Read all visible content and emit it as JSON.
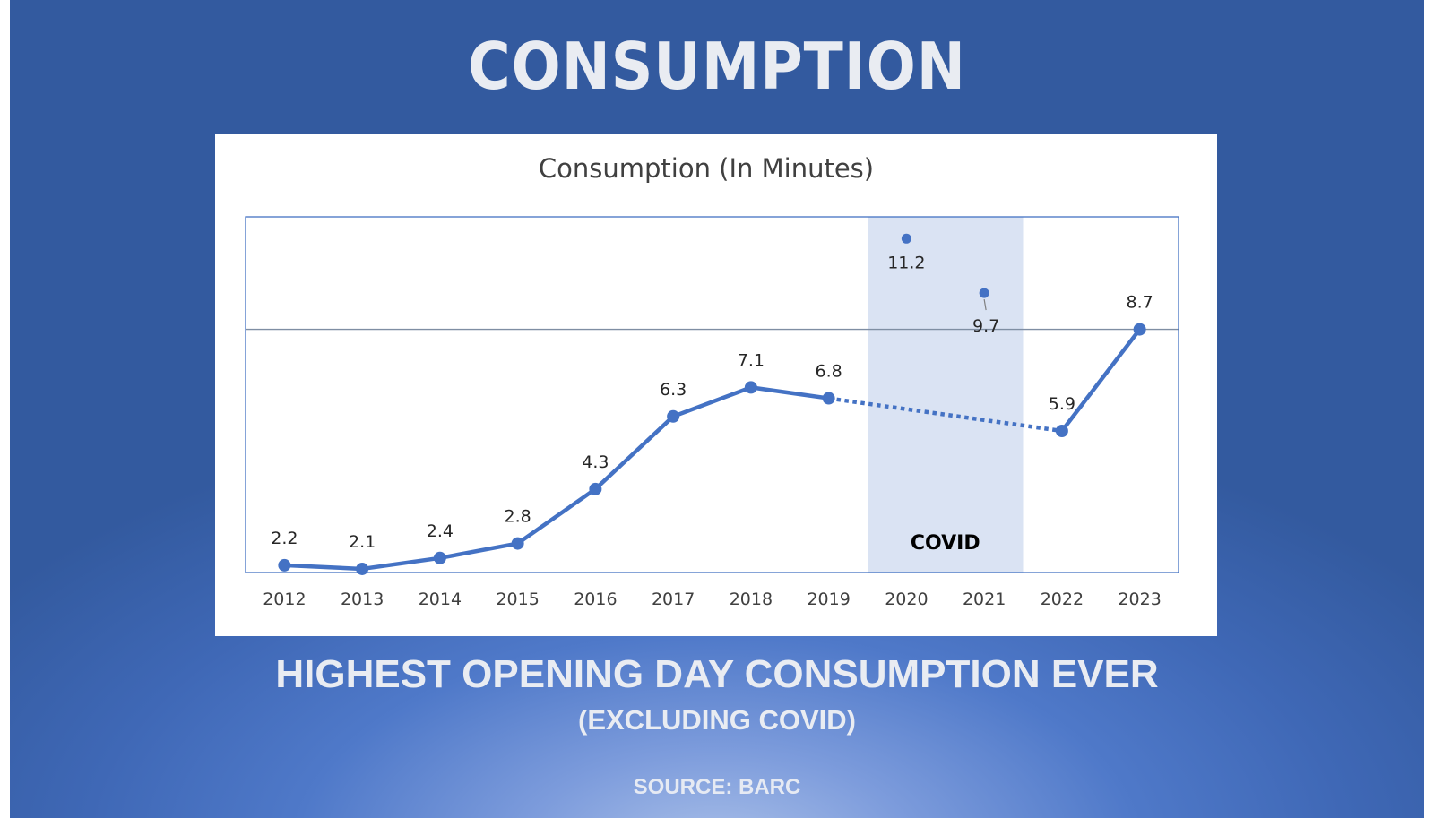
{
  "slide": {
    "title": "CONSUMPTION",
    "subtitle": "HIGHEST OPENING DAY CONSUMPTION EVER",
    "subnote": "(EXCLUDING COVID)",
    "source": "SOURCE: BARC"
  },
  "colors": {
    "series": "#4472c4",
    "band": "#dae3f3",
    "frame": "#4472c4",
    "reference_line": "#7f8ea3"
  },
  "chart_data": {
    "type": "line",
    "title": "Consumption (In Minutes)",
    "xlabel": "",
    "ylabel": "",
    "categories": [
      "2012",
      "2013",
      "2014",
      "2015",
      "2016",
      "2017",
      "2018",
      "2019",
      "2020",
      "2021",
      "2022",
      "2023"
    ],
    "series": [
      {
        "values": [
          2.2,
          2.1,
          2.4,
          2.8,
          4.3,
          6.3,
          7.1,
          6.8,
          11.2,
          9.7,
          5.9,
          8.7
        ]
      }
    ],
    "value_labels": [
      "2.2",
      "2.1",
      "2.4",
      "2.8",
      "4.3",
      "6.3",
      "7.1",
      "6.8",
      "11.2",
      "9.7",
      "5.9",
      "8.7"
    ],
    "line_style": "solid from 2012 to 2019, dotted from 2019 to 2022 skipping 2020 and 2021, solid from 2022 to 2023; 2020 and 2021 shown as isolated markers",
    "highlight_band": {
      "from": "2020",
      "to": "2021",
      "label": "COVID"
    },
    "reference_line": {
      "y": 8.7
    },
    "ylim": [
      2.0,
      11.8
    ],
    "grid": false,
    "legend": "none"
  }
}
